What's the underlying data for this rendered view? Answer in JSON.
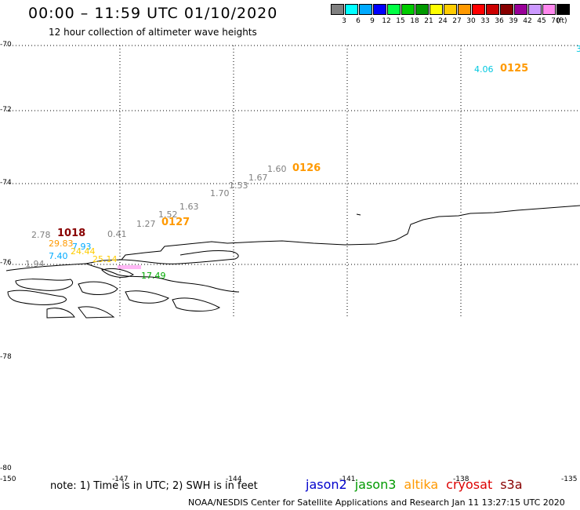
{
  "header": {
    "title": "00:00 – 11:59 UTC 01/10/2020",
    "subtitle": "12 hour collection of altimeter wave heights"
  },
  "colorbar": {
    "swatches": [
      "#808080",
      "#00ffff",
      "#00aaff",
      "#0000ff",
      "#00ff44",
      "#00cc00",
      "#009900",
      "#ffff00",
      "#ffcc00",
      "#ff9900",
      "#ff0000",
      "#cc0000",
      "#880000",
      "#990099",
      "#cc99ff",
      "#ff88ee",
      "#000000"
    ],
    "labels": [
      "3",
      "6",
      "9",
      "12",
      "15",
      "18",
      "21",
      "24",
      "27",
      "30",
      "33",
      "36",
      "39",
      "42",
      "45",
      "70"
    ],
    "unit": "(ft)"
  },
  "axes": {
    "lat_labels": [
      "-70",
      "-72",
      "-74",
      "-76",
      "-78",
      "-80"
    ],
    "lon_labels": [
      "-150",
      "-147",
      "-144",
      "-141",
      "-138",
      "-135"
    ],
    "lat_bottom_extra": "-78"
  },
  "observations": {
    "values": [
      {
        "text": "4.06",
        "color": "#00c8e0"
      },
      {
        "text": "3",
        "color": "#00c8e0"
      },
      {
        "text": "1.60",
        "color": "#808080"
      },
      {
        "text": "1.67",
        "color": "#808080"
      },
      {
        "text": "1.53",
        "color": "#808080"
      },
      {
        "text": "1.70",
        "color": "#808080"
      },
      {
        "text": "1.63",
        "color": "#808080"
      },
      {
        "text": "1.52",
        "color": "#808080"
      },
      {
        "text": "1.27",
        "color": "#808080"
      },
      {
        "text": "0.41",
        "color": "#808080"
      },
      {
        "text": "2.78",
        "color": "#808080"
      },
      {
        "text": "29.83",
        "color": "#ff9900"
      },
      {
        "text": "7.93",
        "color": "#00aaff"
      },
      {
        "text": "24.44",
        "color": "#ffcc00"
      },
      {
        "text": "7.40",
        "color": "#00aaff"
      },
      {
        "text": "25.14",
        "color": "#ffcc00"
      },
      {
        "text": "1.94",
        "color": "#808080"
      },
      {
        "text": "17.49",
        "color": "#00aa00"
      }
    ],
    "passes": [
      {
        "text": "0125",
        "color": "#ff9900"
      },
      {
        "text": "0126",
        "color": "#ff9900"
      },
      {
        "text": "0127",
        "color": "#ff9900"
      },
      {
        "text": "1018",
        "color": "#880000"
      }
    ]
  },
  "footer": {
    "note": "note: 1) Time is in UTC; 2) SWH is in feet",
    "legend": [
      {
        "name": "jason2",
        "color": "#0000cc"
      },
      {
        "name": "jason3",
        "color": "#009900"
      },
      {
        "name": "altika",
        "color": "#ff9900"
      },
      {
        "name": "cryosat",
        "color": "#dd0000"
      },
      {
        "name": "s3a",
        "color": "#880000"
      }
    ],
    "credit": "NOAA/NESDIS Center for Satellite Applications and Research    Jan 11 13:27:15 UTC 2020"
  }
}
